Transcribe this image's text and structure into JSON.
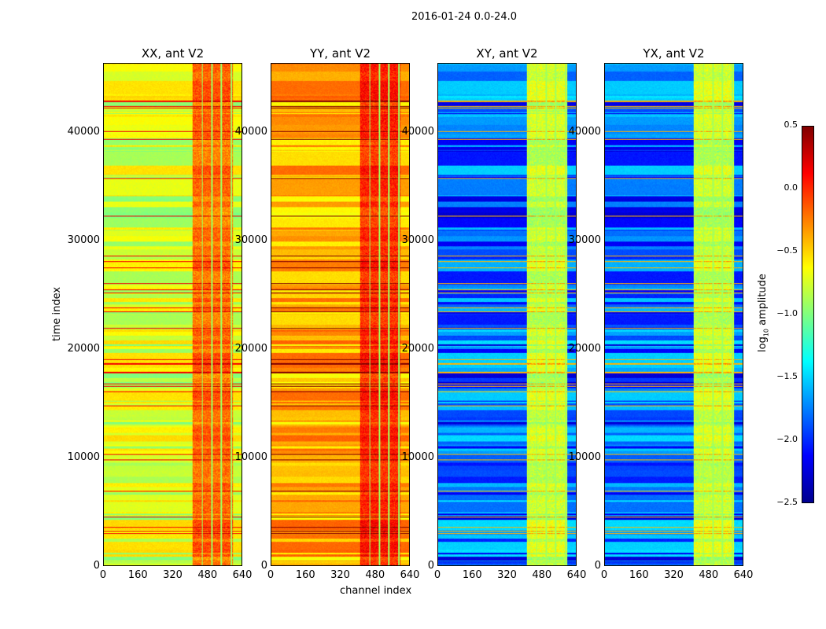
{
  "chart_data": {
    "type": "heatmap",
    "title": "2016-01-24 0.0-24.0",
    "xlabel": "channel index",
    "ylabel": "time index",
    "xlim": [
      0,
      640
    ],
    "ylim": [
      0,
      46400
    ],
    "xticks": [
      "0",
      "160",
      "320",
      "480",
      "640"
    ],
    "yticks": [
      "0",
      "10000",
      "20000",
      "30000",
      "40000"
    ],
    "panels": [
      {
        "title": "XX, ant V2",
        "base_level": -0.75,
        "rfi_channels": [
          410,
          600
        ],
        "rfi_level": -0.2
      },
      {
        "title": "YY, ant V2",
        "base_level": -0.4,
        "rfi_channels": [
          410,
          600
        ],
        "rfi_level": 0.0
      },
      {
        "title": "XY, ant V2",
        "base_level": -1.85,
        "rfi_channels": [
          410,
          600
        ],
        "rfi_level": -0.8
      },
      {
        "title": "YX, ant V2",
        "base_level": -1.85,
        "rfi_channels": [
          410,
          600
        ],
        "rfi_level": -0.8
      }
    ],
    "colorbar": {
      "label_main": "log",
      "label_sub": "10",
      "label_rest": " amplitude",
      "range": [
        -2.5,
        0.5
      ],
      "ticks": [
        "0.5",
        "0.0",
        "−0.5",
        "−1.0",
        "−1.5",
        "−2.0",
        "−2.5"
      ],
      "tick_values": [
        0.5,
        0.0,
        -0.5,
        -1.0,
        -1.5,
        -2.0,
        -2.5
      ],
      "colormap": "jet"
    }
  }
}
